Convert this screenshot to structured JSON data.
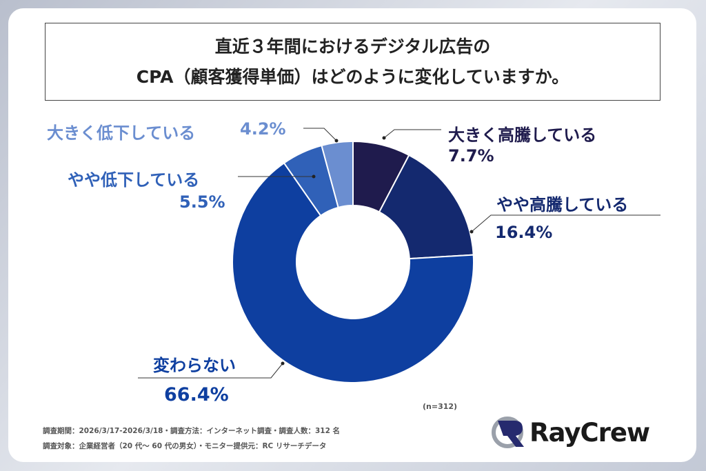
{
  "title": {
    "line1": "直近３年間におけるデジタル広告の",
    "line2": "CPA（顧客獲得単価）はどのように変化していますか。"
  },
  "chart_data": {
    "type": "pie",
    "donut": true,
    "categories": [
      "大きく高騰している",
      "やや高騰している",
      "変わらない",
      "やや低下している",
      "大きく低下している"
    ],
    "values": [
      7.7,
      16.4,
      66.4,
      5.5,
      4.2
    ],
    "labels": [
      "7.7%",
      "16.4%",
      "66.4%",
      "5.5%",
      "4.2%"
    ],
    "colors": [
      "#1f1b4d",
      "#14296f",
      "#0e3fa0",
      "#3061b8",
      "#6b8ed0"
    ],
    "legend": "none"
  },
  "sample": "(n=312)",
  "footer": {
    "line1": "調査期間：2026/3/17-2026/3/18・調査方法：インターネット調査・調査人数：312 名",
    "line2": "調査対象：企業経営者（20 代〜 60 代の男女）・モニター提供元：RC リサーチデータ"
  },
  "logo": {
    "text": "RayCrew"
  }
}
